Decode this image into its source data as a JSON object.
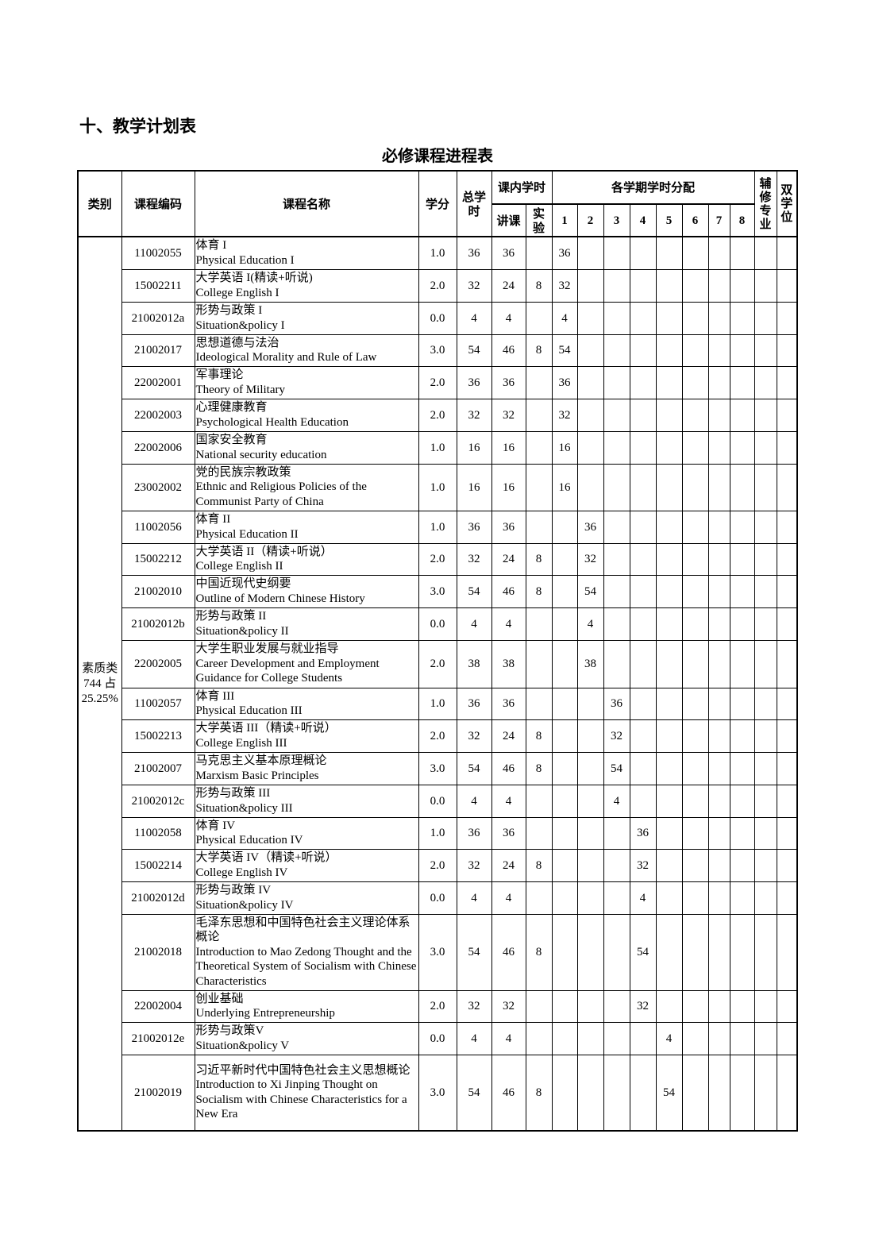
{
  "section_title": "十、教学计划表",
  "table_title": "必修课程进程表",
  "headers": {
    "category": "类别",
    "code": "课程编码",
    "name": "课程名称",
    "credit": "学分",
    "total": "总学时",
    "in_class": "课内学时",
    "lecture": "讲课",
    "lab": "实验",
    "semesters_group": "各学期学时分配",
    "semesters": [
      "1",
      "2",
      "3",
      "4",
      "5",
      "6",
      "7",
      "8"
    ],
    "minor": "辅修专业",
    "double_degree": "双学位"
  },
  "category": {
    "name": "素质类",
    "hours": "744 占",
    "percent": "25.25%"
  },
  "rows": [
    {
      "code": "11002055",
      "cn": "体育 I",
      "en": "Physical Education I",
      "credit": "1.0",
      "total": "36",
      "lecture": "36",
      "lab": "",
      "sem": 1,
      "hours": "36",
      "h": 41
    },
    {
      "code": "15002211",
      "cn": "大学英语 I(精读+听说)",
      "en": "College English I",
      "credit": "2.0",
      "total": "32",
      "lecture": "24",
      "lab": "8",
      "sem": 1,
      "hours": "32",
      "h": 41
    },
    {
      "code": "21002012a",
      "cn": "形势与政策 I",
      "en": "Situation&policy I",
      "credit": "0.0",
      "total": "4",
      "lecture": "4",
      "lab": "",
      "sem": 1,
      "hours": "4",
      "h": 41
    },
    {
      "code": "21002017",
      "cn": "思想道德与法治",
      "en": "Ideological Morality and Rule of Law",
      "credit": "3.0",
      "total": "54",
      "lecture": "46",
      "lab": "8",
      "sem": 1,
      "hours": "54",
      "h": 40
    },
    {
      "code": "22002001",
      "cn": "军事理论",
      "en": "Theory of Military",
      "credit": "2.0",
      "total": "36",
      "lecture": "36",
      "lab": "",
      "sem": 1,
      "hours": "36",
      "h": 41
    },
    {
      "code": "22002003",
      "cn": "心理健康教育",
      "en": "Psychological Health Education",
      "credit": "2.0",
      "total": "32",
      "lecture": "32",
      "lab": "",
      "sem": 1,
      "hours": "32",
      "h": 41
    },
    {
      "code": "22002006",
      "cn": "国家安全教育",
      "en": "National security education",
      "credit": "1.0",
      "total": "16",
      "lecture": "16",
      "lab": "",
      "sem": 1,
      "hours": "16",
      "h": 41
    },
    {
      "code": "23002002",
      "cn": "党的民族宗教政策",
      "en": "Ethnic and Religious Policies of the Communist Party of China",
      "credit": "1.0",
      "total": "16",
      "lecture": "16",
      "lab": "",
      "sem": 1,
      "hours": "16",
      "h": 59
    },
    {
      "code": "11002056",
      "cn": "体育 II",
      "en": "Physical Education II",
      "credit": "1.0",
      "total": "36",
      "lecture": "36",
      "lab": "",
      "sem": 2,
      "hours": "36",
      "h": 41
    },
    {
      "code": "15002212",
      "cn": "大学英语 II（精读+听说）",
      "en": "College English II",
      "credit": "2.0",
      "total": "32",
      "lecture": "24",
      "lab": "8",
      "sem": 2,
      "hours": "32",
      "h": 40
    },
    {
      "code": "21002010",
      "cn": "中国近现代史纲要",
      "en": "Outline of Modern Chinese History",
      "credit": "3.0",
      "total": "54",
      "lecture": "46",
      "lab": "8",
      "sem": 2,
      "hours": "54",
      "h": 41
    },
    {
      "code": "21002012b",
      "cn": "形势与政策 II",
      "en": "Situation&policy II",
      "credit": "0.0",
      "total": "4",
      "lecture": "4",
      "lab": "",
      "sem": 2,
      "hours": "4",
      "h": 41
    },
    {
      "code": "22002005",
      "cn": "大学生职业发展与就业指导",
      "en": "Career Development and Employment Guidance for College Students",
      "credit": "2.0",
      "total": "38",
      "lecture": "38",
      "lab": "",
      "sem": 2,
      "hours": "38",
      "h": 60
    },
    {
      "code": "11002057",
      "cn": "体育 III",
      "en": "Physical Education III",
      "credit": "1.0",
      "total": "36",
      "lecture": "36",
      "lab": "",
      "sem": 3,
      "hours": "36",
      "h": 40
    },
    {
      "code": "15002213",
      "cn": "大学英语 III（精读+听说）",
      "en": "College English III",
      "credit": "2.0",
      "total": "32",
      "lecture": "24",
      "lab": "8",
      "sem": 3,
      "hours": "32",
      "h": 41
    },
    {
      "code": "21002007",
      "cn": "马克思主义基本原理概论",
      "en": "Marxism Basic Principles",
      "credit": "3.0",
      "total": "54",
      "lecture": "46",
      "lab": "8",
      "sem": 3,
      "hours": "54",
      "h": 41
    },
    {
      "code": "21002012c",
      "cn": "形势与政策 III",
      "en": "Situation&policy III",
      "credit": "0.0",
      "total": "4",
      "lecture": "4",
      "lab": "",
      "sem": 3,
      "hours": "4",
      "h": 41
    },
    {
      "code": "11002058",
      "cn": "体育 IV",
      "en": "Physical Education IV",
      "credit": "1.0",
      "total": "36",
      "lecture": "36",
      "lab": "",
      "sem": 4,
      "hours": "36",
      "h": 40
    },
    {
      "code": "15002214",
      "cn": "大学英语 IV（精读+听说）",
      "en": "College English IV",
      "credit": "2.0",
      "total": "32",
      "lecture": "24",
      "lab": "8",
      "sem": 4,
      "hours": "32",
      "h": 41
    },
    {
      "code": "21002012d",
      "cn": "形势与政策 IV",
      "en": "Situation&policy IV",
      "credit": "0.0",
      "total": "4",
      "lecture": "4",
      "lab": "",
      "sem": 4,
      "hours": "4",
      "h": 41
    },
    {
      "code": "21002018",
      "cn": "毛泽东思想和中国特色社会主义理论体系概论",
      "en": "Introduction to Mao Zedong Thought and the Theoretical System of Socialism with Chinese Characteristics",
      "credit": "3.0",
      "total": "54",
      "lecture": "46",
      "lab": "8",
      "sem": 4,
      "hours": "54",
      "h": 96
    },
    {
      "code": "22002004",
      "cn": "创业基础",
      "en": "Underlying Entrepreneurship",
      "credit": "2.0",
      "total": "32",
      "lecture": "32",
      "lab": "",
      "sem": 4,
      "hours": "32",
      "h": 40
    },
    {
      "code": "21002012e",
      "cn": "形势与政策V",
      "en": "Situation&policy V",
      "credit": "0.0",
      "total": "4",
      "lecture": "4",
      "lab": "",
      "sem": 5,
      "hours": "4",
      "h": 41
    },
    {
      "code": "21002019",
      "cn": "习近平新时代中国特色社会主义思想概论",
      "en": "Introduction to Xi Jinping Thought on Socialism with Chinese Characteristics for a New Era",
      "credit": "3.0",
      "total": "54",
      "lecture": "46",
      "lab": "8",
      "sem": 5,
      "hours": "54",
      "h": 96
    }
  ]
}
